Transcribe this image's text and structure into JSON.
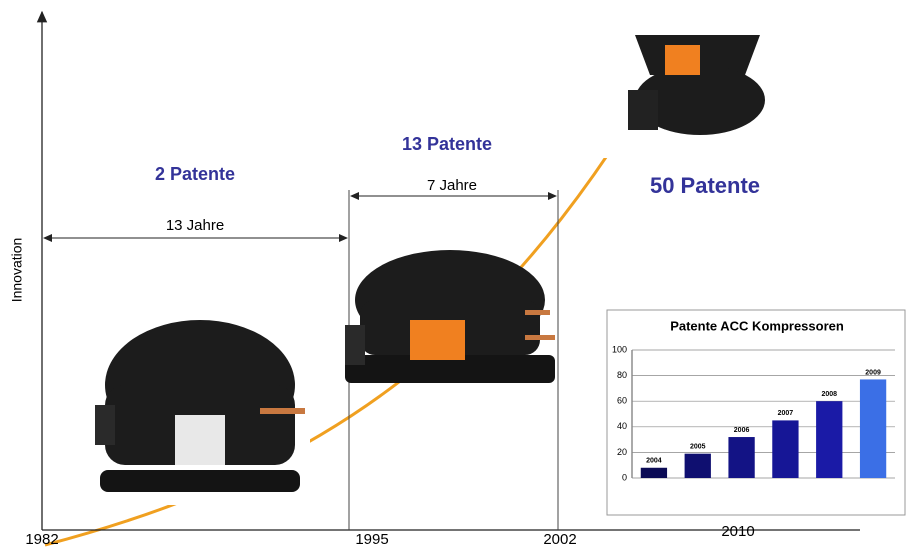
{
  "axis_label": "Innovation",
  "years": [
    "1982",
    "1995",
    "2002",
    "2010"
  ],
  "spans": [
    "13 Jahre",
    "7 Jahre"
  ],
  "patents": [
    "2 Patente",
    "13 Patente",
    "50 Patente"
  ],
  "chart_data": {
    "type": "bar",
    "title": "Patente ACC Kompressoren",
    "categories": [
      "2004",
      "2005",
      "2006",
      "2007",
      "2008",
      "2009"
    ],
    "values": [
      8,
      19,
      32,
      45,
      60,
      77
    ],
    "colors": [
      "#0b0b55",
      "#0f0f70",
      "#131385",
      "#161696",
      "#1a1aa6",
      "#3b6fe6"
    ],
    "ylim": [
      0,
      100
    ],
    "yticks": [
      0,
      20,
      40,
      60,
      80,
      100
    ],
    "grid": true
  }
}
